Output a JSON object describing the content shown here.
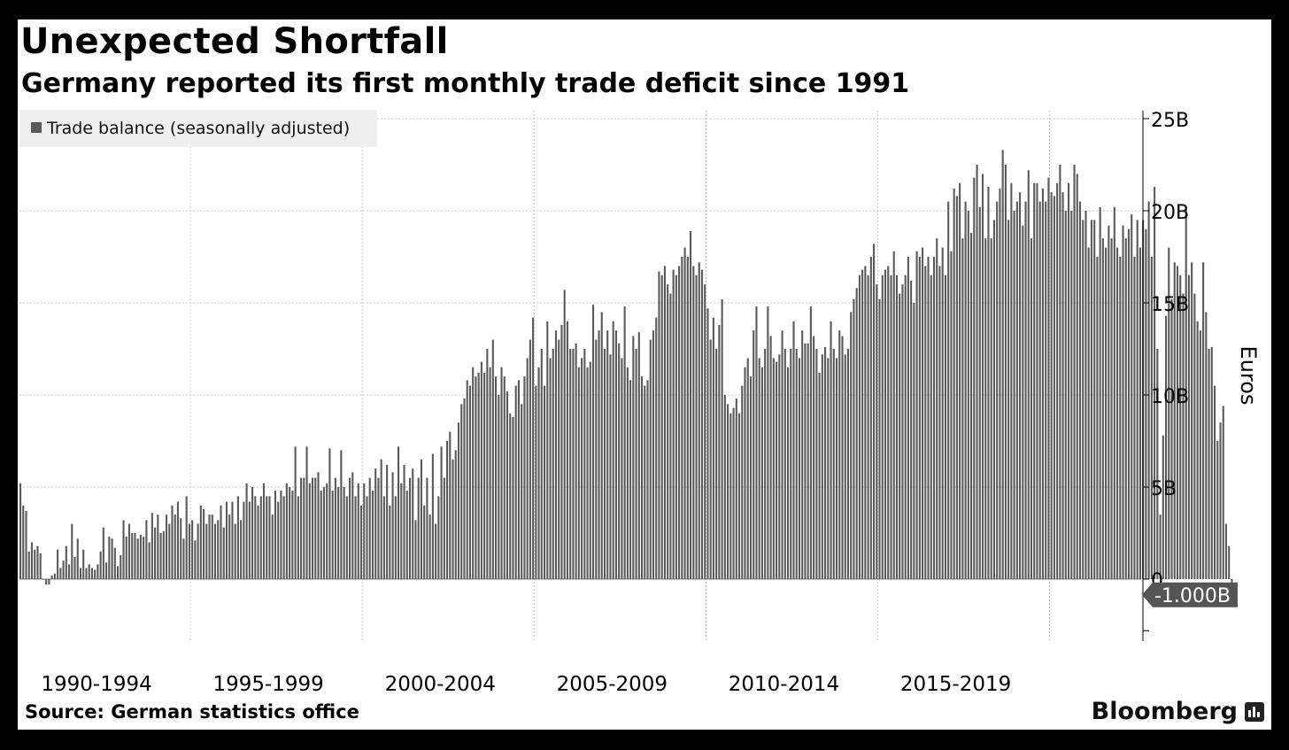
{
  "header": {
    "title": "Unexpected Shortfall",
    "subtitle": "Germany reported its first monthly trade deficit since 1991"
  },
  "footer": {
    "source": "Source: German statistics office",
    "brand": "Bloomberg"
  },
  "colors": {
    "bar": "#5a5a5a",
    "grid": "#c8c8c8",
    "callout": "#555555"
  },
  "chart_data": {
    "type": "bar",
    "title": "Unexpected Shortfall",
    "subtitle": "Germany reported its first monthly trade deficit since 1991",
    "xlabel": "",
    "ylabel": "Euros",
    "y_unit": "B",
    "ylim": [
      -3,
      25
    ],
    "y_ticks": [
      0,
      5,
      10,
      15,
      20,
      25
    ],
    "y_tick_labels": [
      "0",
      "5B",
      "10B",
      "15B",
      "20B",
      "25B"
    ],
    "x_period_labels": [
      "1990-1994",
      "1995-1999",
      "2000-2004",
      "2005-2009",
      "2010-2014",
      "2015-2019"
    ],
    "legend": {
      "position": "top-left",
      "entries": [
        "Trade balance (seasonally adjusted)"
      ]
    },
    "grid": true,
    "last_value_label": "-1.000B",
    "series": [
      {
        "name": "Trade balance (seasonally adjusted)",
        "start": "1990-01",
        "frequency": "monthly",
        "values": [
          5.2,
          4.0,
          3.7,
          1.5,
          2.0,
          1.6,
          1.8,
          1.4,
          0.0,
          -0.3,
          -0.3,
          0.2,
          0.3,
          1.6,
          0.6,
          1.0,
          1.8,
          0.8,
          3.0,
          1.2,
          2.2,
          0.6,
          1.6,
          0.6,
          0.8,
          0.6,
          0.5,
          0.8,
          1.5,
          2.8,
          0.9,
          2.3,
          2.2,
          1.7,
          0.7,
          1.3,
          3.2,
          2.3,
          3.0,
          2.5,
          2.5,
          2.2,
          2.4,
          2.3,
          3.2,
          2.0,
          3.6,
          2.8,
          3.5,
          2.5,
          2.6,
          3.5,
          3.0,
          4.0,
          3.5,
          4.2,
          3.3,
          2.2,
          4.5,
          3.0,
          3.2,
          2.1,
          3.0,
          4.0,
          3.8,
          3.0,
          3.5,
          3.5,
          3.0,
          3.2,
          4.0,
          2.8,
          4.2,
          3.5,
          4.2,
          3.0,
          4.5,
          3.2,
          4.2,
          5.2,
          4.2,
          5.0,
          4.5,
          4.0,
          4.5,
          5.2,
          4.5,
          4.5,
          3.5,
          4.8,
          4.2,
          4.8,
          4.5,
          5.2,
          5.0,
          4.8,
          7.2,
          4.5,
          5.5,
          5.5,
          7.2,
          5.2,
          5.5,
          5.5,
          5.8,
          4.8,
          5.0,
          5.2,
          7.1,
          4.8,
          5.5,
          5.0,
          7.0,
          5.0,
          4.5,
          5.5,
          5.8,
          4.5,
          5.2,
          4.0,
          5.2,
          4.5,
          5.5,
          4.8,
          6.0,
          5.5,
          6.5,
          4.5,
          6.2,
          4.0,
          5.8,
          4.5,
          7.2,
          5.2,
          6.2,
          4.8,
          5.5,
          6.0,
          3.2,
          5.5,
          6.5,
          4.0,
          5.5,
          3.5,
          6.8,
          3.0,
          4.5,
          7.2,
          5.5,
          7.5,
          8.0,
          6.5,
          7.0,
          8.5,
          9.5,
          9.8,
          10.8,
          10.5,
          11.5,
          11.0,
          11.2,
          11.8,
          11.2,
          12.5,
          11.5,
          13.0,
          11.0,
          10.0,
          11.5,
          11.0,
          10.2,
          9.0,
          8.8,
          10.5,
          10.8,
          9.5,
          11.0,
          12.0,
          13.0,
          14.2,
          10.5,
          11.5,
          12.5,
          10.5,
          14.0,
          12.0,
          12.5,
          13.5,
          13.0,
          13.8,
          15.7,
          14.0,
          12.5,
          12.5,
          12.8,
          11.5,
          12.0,
          12.5,
          11.5,
          11.8,
          14.9,
          13.0,
          13.5,
          14.5,
          12.5,
          13.5,
          12.2,
          14.0,
          13.5,
          12.8,
          12.0,
          14.8,
          11.5,
          10.8,
          13.2,
          12.5,
          13.4,
          11.0,
          10.5,
          10.8,
          13.0,
          13.5,
          14.2,
          16.7,
          16.5,
          17.0,
          16.0,
          15.5,
          16.8,
          16.5,
          17.0,
          17.5,
          18.0,
          17.5,
          18.9,
          17.0,
          16.5,
          17.2,
          16.8,
          16.0,
          14.7,
          13.0,
          14.2,
          12.5,
          13.8,
          15.2,
          10.0,
          9.5,
          9.0,
          9.3,
          9.8,
          9.0,
          10.5,
          11.5,
          12.0,
          11.0,
          13.5,
          14.8,
          12.0,
          11.5,
          12.5,
          14.8,
          13.2,
          12.0,
          11.8,
          12.2,
          13.5,
          12.5,
          11.5,
          12.5,
          14.0,
          12.5,
          12.0,
          13.5,
          12.8,
          12.8,
          14.8,
          13.2,
          12.5,
          11.2,
          12.2,
          12.6,
          12.0,
          14.0,
          12.5,
          12.0,
          13.5,
          13.2,
          12.2,
          12.5,
          14.5,
          15.2,
          15.8,
          16.5,
          16.8,
          17.0,
          16.5,
          17.5,
          18.2,
          16.0,
          15.2,
          16.5,
          16.8,
          17.0,
          16.5,
          17.8,
          16.5,
          15.5,
          16.0,
          16.5,
          17.5,
          16.2,
          15.0,
          17.8,
          17.5,
          18.0,
          17.0,
          17.5,
          16.5,
          17.5,
          18.5,
          17.0,
          18.0,
          16.5,
          20.5,
          17.8,
          21.2,
          20.8,
          21.5,
          18.5,
          20.5,
          20.0,
          18.8,
          21.8,
          22.5,
          20.2,
          22.0,
          18.5,
          21.3,
          18.5,
          19.5,
          20.5,
          21.2,
          23.3,
          22.5,
          19.5,
          21.5,
          20.0,
          20.5,
          21.0,
          19.2,
          20.5,
          22.2,
          18.5,
          21.5,
          21.5,
          20.5,
          21.2,
          20.5,
          21.8,
          21.0,
          20.8,
          21.5,
          22.5,
          21.0,
          20.0,
          21.5,
          20.0,
          22.5,
          22.0,
          20.5,
          19.5,
          20.0,
          18.0,
          19.5,
          19.5,
          17.5,
          20.2,
          18.5,
          18.0,
          19.2,
          18.5,
          20.2,
          18.0,
          17.5,
          19.2,
          18.5,
          19.0,
          19.8,
          17.5,
          19.5,
          18.0,
          19.5,
          19.0,
          20.5,
          17.5,
          21.3,
          12.5,
          3.5,
          7.8,
          14.3,
          18.0,
          15.2,
          17.2,
          17.0,
          16.5,
          15.5,
          20.1,
          16.5,
          17.2,
          15.5,
          14.0,
          13.5,
          17.2,
          14.5,
          12.5,
          12.6,
          10.5,
          7.5,
          8.5,
          9.4,
          3.0,
          1.8,
          -1.0
        ]
      }
    ]
  }
}
